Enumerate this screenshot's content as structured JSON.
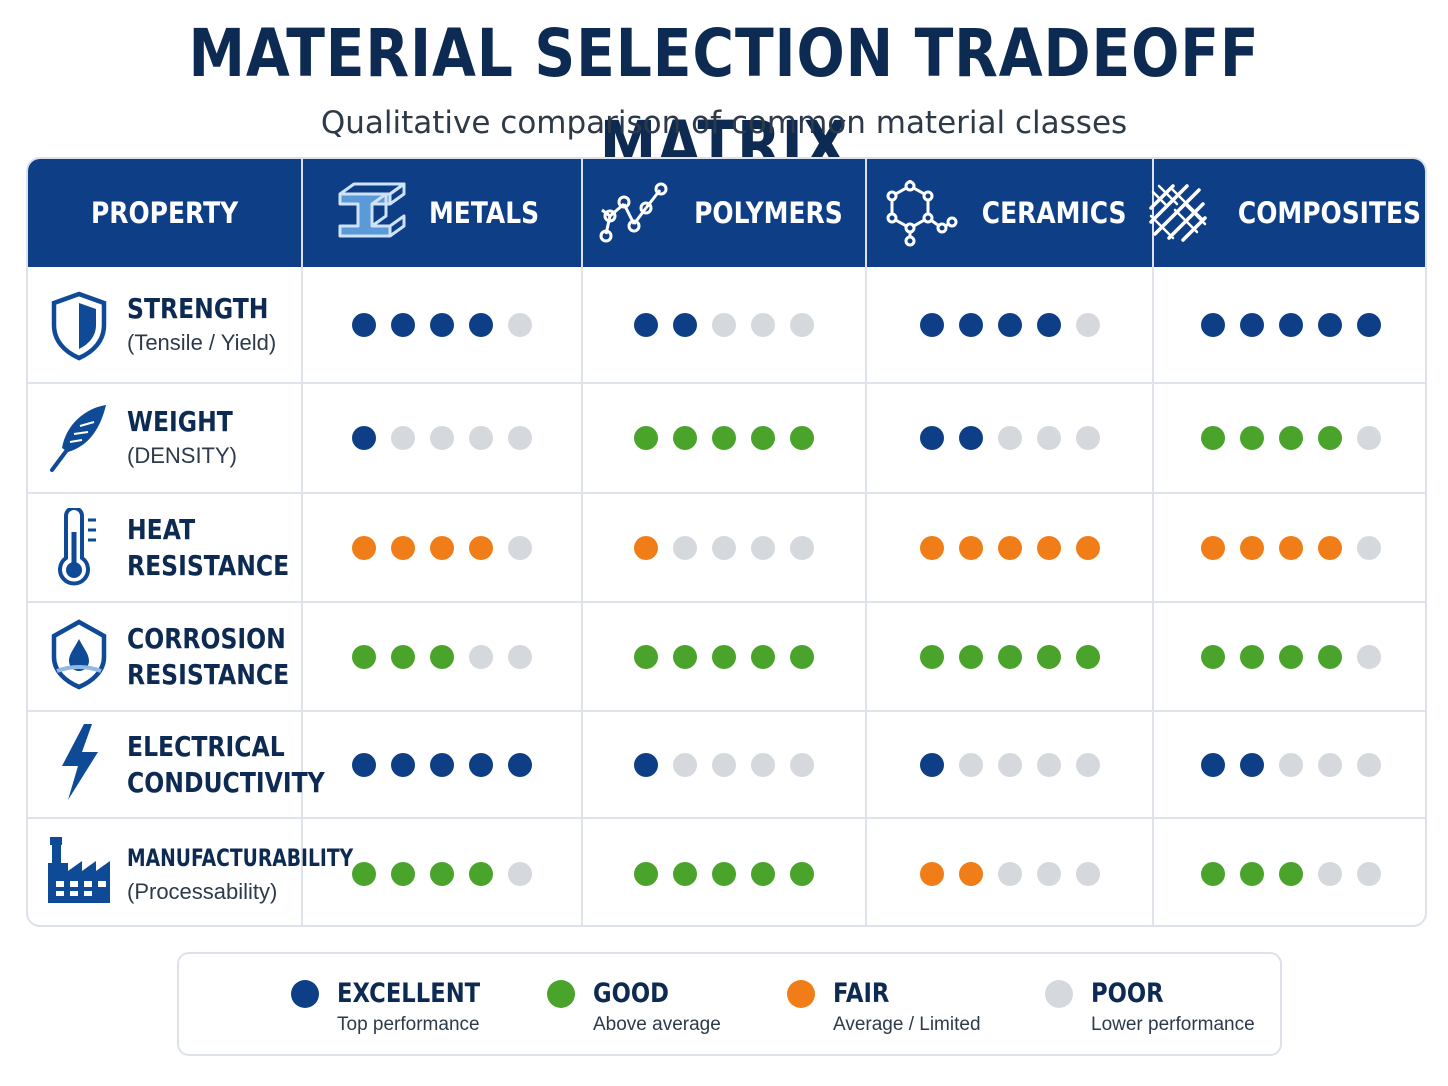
{
  "title": "MATERIAL SELECTION TRADEOFF MATRIX",
  "subtitle": "Qualitative comparison of common material classes",
  "colors": {
    "excellent": "#0e3f86",
    "good": "#4aa32a",
    "fair": "#f07d17",
    "poor": "#d5d9de",
    "header_bg": "#0e3f86"
  },
  "chart_data": {
    "type": "table",
    "property_header": "PROPERTY",
    "materials": [
      {
        "name": "METALS",
        "icon": "i-beam-icon"
      },
      {
        "name": "POLYMERS",
        "icon": "polymer-chain-icon"
      },
      {
        "name": "CERAMICS",
        "icon": "molecule-hexagon-icon"
      },
      {
        "name": "COMPOSITES",
        "icon": "woven-fiber-icon"
      }
    ],
    "max_rating": 5,
    "rows": [
      {
        "name": "STRENGTH",
        "sub": "(Tensile / Yield)",
        "icon": "shield-icon",
        "level": "excellent",
        "ratings": [
          4,
          2,
          4,
          5
        ]
      },
      {
        "name": "WEIGHT",
        "sub": "(DENSITY)",
        "icon": "feather-icon",
        "level": "good",
        "ratings": [
          1,
          5,
          2,
          4
        ],
        "levels": [
          "excellent",
          "good",
          "excellent",
          "good"
        ]
      },
      {
        "name_lines": [
          "HEAT",
          "RESISTANCE"
        ],
        "icon": "thermometer-icon",
        "level": "fair",
        "ratings": [
          4,
          1,
          5,
          4
        ]
      },
      {
        "name_lines": [
          "CORROSION",
          "RESISTANCE"
        ],
        "icon": "water-drop-shield-icon",
        "level": "good",
        "ratings": [
          3,
          5,
          5,
          4
        ]
      },
      {
        "name_lines": [
          "ELECTRICAL",
          "CONDUCTIVITY"
        ],
        "icon": "lightning-bolt-icon",
        "level": "excellent",
        "ratings": [
          5,
          1,
          1,
          2
        ]
      },
      {
        "name": "MANUFACTURABILITY",
        "sub": "(Processability)",
        "icon": "factory-icon",
        "level": "good",
        "ratings": [
          4,
          5,
          2,
          3
        ],
        "levels": [
          "good",
          "good",
          "fair",
          "good"
        ]
      }
    ]
  },
  "legend": [
    {
      "key": "excellent",
      "label": "EXCELLENT",
      "desc": "Top performance"
    },
    {
      "key": "good",
      "label": "GOOD",
      "desc": "Above average"
    },
    {
      "key": "fair",
      "label": "FAIR",
      "desc": "Average / Limited"
    },
    {
      "key": "poor",
      "label": "POOR",
      "desc": "Lower performance"
    }
  ]
}
